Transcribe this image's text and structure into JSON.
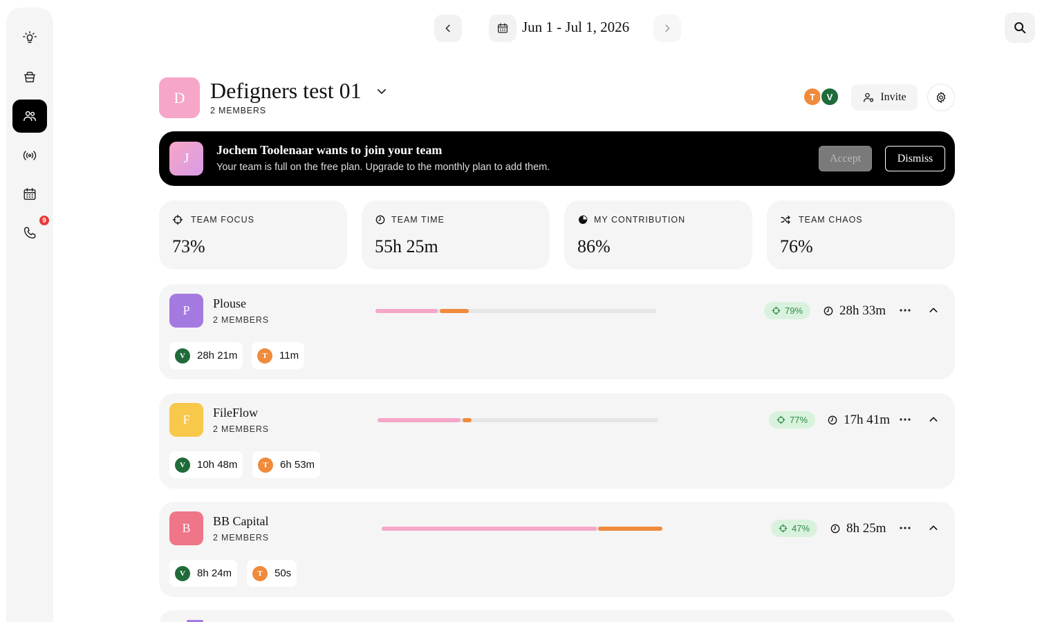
{
  "header": {
    "date_range": "Jun 1 - Jul 1, 2026"
  },
  "sidebar": {
    "items": [
      {
        "icon": "lightbulb-icon"
      },
      {
        "icon": "cup-icon"
      },
      {
        "icon": "team-icon",
        "active": true
      },
      {
        "icon": "broadcast-icon"
      },
      {
        "icon": "calendar-icon"
      },
      {
        "icon": "phone-icon",
        "badge": "9"
      }
    ]
  },
  "team": {
    "initial": "D",
    "name": "Defigners test 01",
    "members_label": "2 MEMBERS",
    "member_avatars": [
      {
        "initial": "T",
        "color": "#f08a3c"
      },
      {
        "initial": "V",
        "color": "#1f6b3a"
      }
    ],
    "invite_label": "Invite"
  },
  "banner": {
    "initial": "J",
    "title": "Jochem Toolenaar wants to join your team",
    "subtitle": "Your team is full on the free plan. Upgrade to the monthly plan to add them.",
    "accept_label": "Accept",
    "dismiss_label": "Dismiss"
  },
  "stats": [
    {
      "label": "TEAM FOCUS",
      "value": "73%",
      "icon": "crosshair-icon"
    },
    {
      "label": "TEAM TIME",
      "value": "55h 25m",
      "icon": "clock-icon"
    },
    {
      "label": "MY CONTRIBUTION",
      "value": "86%",
      "icon": "pie-icon"
    },
    {
      "label": "TEAM CHAOS",
      "value": "76%",
      "icon": "shuffle-icon"
    }
  ],
  "projects": [
    {
      "initial": "P",
      "name": "Plouse",
      "members_label": "2 MEMBERS",
      "color": "#a57ae0",
      "focus": "79%",
      "time": "28h 33m",
      "bar_fractions": {
        "pink": 0.223,
        "orange": 0.107
      },
      "members": [
        {
          "initial": "V",
          "time": "28h 21m",
          "color": "#1f6b3a"
        },
        {
          "initial": "T",
          "time": "11m",
          "color": "#f08a3c"
        }
      ]
    },
    {
      "initial": "F",
      "name": "FileFlow",
      "members_label": "2 MEMBERS",
      "color": "#f7c84a",
      "focus": "77%",
      "time": "17h 41m",
      "bar_fractions": {
        "pink": 0.298,
        "orange": 0.033
      },
      "members": [
        {
          "initial": "V",
          "time": "10h 48m",
          "color": "#1f6b3a"
        },
        {
          "initial": "T",
          "time": "6h 53m",
          "color": "#f08a3c"
        }
      ]
    },
    {
      "initial": "B",
      "name": "BB Capital",
      "members_label": "2 MEMBERS",
      "color": "#ef7588",
      "focus": "47%",
      "time": "8h 25m",
      "bar_fractions": {
        "pink": 0.767,
        "orange": 0.231
      },
      "members": [
        {
          "initial": "V",
          "time": "8h 24m",
          "color": "#1f6b3a"
        },
        {
          "initial": "T",
          "time": "50s",
          "color": "#f08a3c"
        }
      ]
    }
  ],
  "colors": {
    "accent_pink": "#f6a6c8",
    "accent_orange": "#f08a3c",
    "focus_green": "#2f8a47"
  }
}
